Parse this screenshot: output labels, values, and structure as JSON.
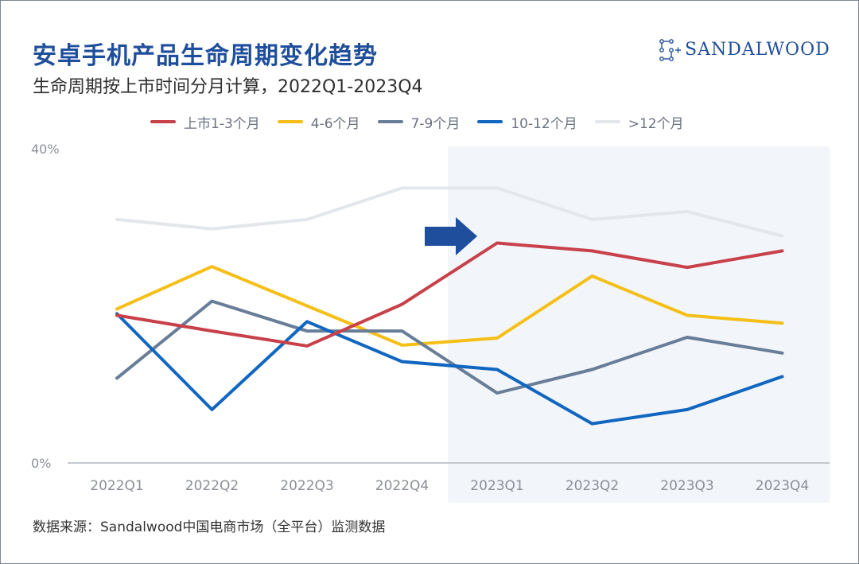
{
  "header": {
    "title": "安卓手机产品生命周期变化趋势",
    "subtitle": "生命周期按上市时间分月计算，2022Q1-2023Q4"
  },
  "brand": {
    "name": "SANDALWOOD",
    "logo_icon": "sandalwood-logo-icon"
  },
  "footer": {
    "source": "数据来源：Sandalwood中国电商市场（全平台）监测数据"
  },
  "chart_data": {
    "type": "line",
    "categories": [
      "2022Q1",
      "2022Q2",
      "2022Q3",
      "2022Q4",
      "2023Q1",
      "2023Q2",
      "2023Q3",
      "2023Q4"
    ],
    "y_ticks": [
      "0%",
      "40%"
    ],
    "ylim": [
      0,
      40
    ],
    "grid": false,
    "legend_position": "top",
    "highlight": {
      "from": "2023Q1",
      "to": "2023Q4",
      "color": "#f2f5fa",
      "marker": "right-arrow-icon",
      "marker_color": "#1f4e9c"
    },
    "series": [
      {
        "name": "上市1-3个月",
        "color": "#c8414a",
        "values": [
          18.8,
          16.8,
          14.9,
          20.2,
          28.0,
          27.0,
          24.9,
          27.0
        ]
      },
      {
        "name": "4-6个月",
        "color": "#f5bf17",
        "values": [
          19.6,
          25.0,
          20.0,
          15.0,
          15.9,
          23.8,
          18.8,
          17.8
        ]
      },
      {
        "name": "7-9个月",
        "color": "#687d98",
        "values": [
          10.8,
          20.6,
          16.8,
          16.8,
          8.9,
          11.9,
          16.0,
          14.0
        ]
      },
      {
        "name": "10-12个月",
        "color": "#1166c0",
        "values": [
          19.0,
          6.8,
          18.0,
          12.9,
          11.9,
          5.0,
          6.8,
          11.0
        ]
      },
      {
        "name": ">12个月",
        "color": "#e3e6eb",
        "values": [
          31.0,
          29.8,
          31.0,
          35.0,
          35.0,
          31.0,
          32.0,
          28.9
        ]
      }
    ]
  }
}
